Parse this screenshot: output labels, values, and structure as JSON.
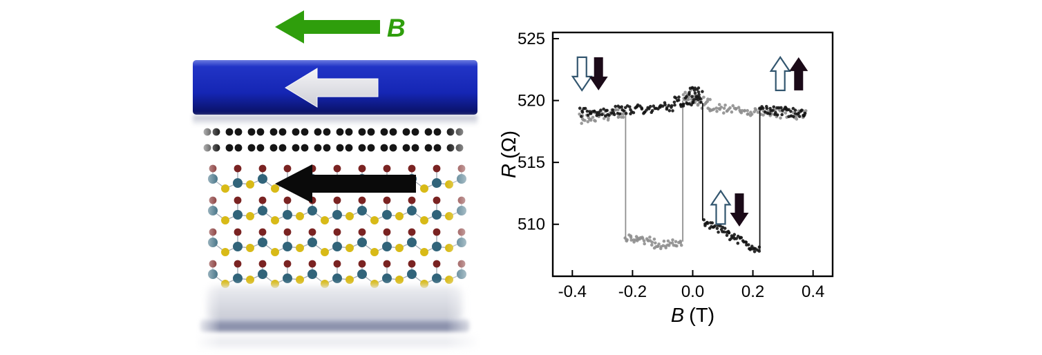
{
  "figure": {
    "schematic": {
      "field_label": "B",
      "colors": {
        "field_arrow": "#2f9e0c",
        "field_label": "#2f9e0c",
        "electrode_top": "#2134c6",
        "electrode_bottom": "#091060",
        "electrode_arrow_light": "#f4f4f6",
        "electrode_arrow_dark": "#cdced6",
        "graphene_atom": "#151515",
        "atom_teal": "#31647a",
        "atom_yellow": "#d8ba17",
        "atom_red": "#7a2322",
        "bond": "#a3abb5",
        "magnetization_arrow": "#0a0a0a",
        "substrate_light": "#c6c9d4",
        "substrate_dark": "#868ca8"
      }
    },
    "chart_data": {
      "type": "scatter",
      "title": "",
      "xlabel_var": "B",
      "xlabel_unit": "(T)",
      "ylabel_var": "R",
      "ylabel_unit": "(Ω)",
      "xlim": [
        -0.465,
        0.465
      ],
      "ylim": [
        505.8,
        525.5
      ],
      "grid": false,
      "legend": "none",
      "xticks": [
        {
          "v": -0.4,
          "label": "-0.4"
        },
        {
          "v": -0.2,
          "label": "-0.2"
        },
        {
          "v": 0.0,
          "label": "0.0"
        },
        {
          "v": 0.2,
          "label": "0.2"
        },
        {
          "v": 0.4,
          "label": "0.4"
        }
      ],
      "yticks": [
        {
          "v": 510,
          "label": "510"
        },
        {
          "v": 515,
          "label": "515"
        },
        {
          "v": 520,
          "label": "520"
        },
        {
          "v": 525,
          "label": "525"
        }
      ],
      "annotation_colors": {
        "open_stroke": "#33566f",
        "filled": "#1b0a18"
      },
      "series": [
        {
          "name": "gray-trace",
          "color": "#8f8f8f",
          "segments": [
            {
              "x1": 0.376,
              "y1": 518.8,
              "x2": 0.06,
              "y2": 519.4,
              "n": 78,
              "noise": 0.38
            },
            {
              "x1": 0.06,
              "y1": 519.6,
              "x2": -0.031,
              "y2": 520.2,
              "n": 30,
              "noise": 0.5
            },
            {
              "x1": -0.03,
              "y1": 520.5,
              "x2": 0.005,
              "y2": 520.4,
              "n": 10,
              "noise": 0.4
            },
            {
              "x1": -0.035,
              "y1": 508.5,
              "x2": -0.13,
              "y2": 508.3,
              "n": 26,
              "noise": 0.32
            },
            {
              "x1": -0.13,
              "y1": 508.6,
              "x2": -0.222,
              "y2": 508.9,
              "n": 28,
              "noise": 0.32
            },
            {
              "x1": -0.225,
              "y1": 519.0,
              "x2": -0.376,
              "y2": 518.5,
              "n": 42,
              "noise": 0.4
            }
          ],
          "jumps": [
            {
              "x": -0.033,
              "y1": 520.0,
              "y2": 508.6
            },
            {
              "x": -0.223,
              "y1": 508.6,
              "y2": 519.0
            }
          ]
        },
        {
          "name": "black-trace",
          "color": "#141414",
          "segments": [
            {
              "x1": -0.376,
              "y1": 519.0,
              "x2": -0.06,
              "y2": 519.5,
              "n": 80,
              "noise": 0.38
            },
            {
              "x1": -0.06,
              "y1": 519.8,
              "x2": 0.031,
              "y2": 520.3,
              "n": 32,
              "noise": 0.5
            },
            {
              "x1": -0.01,
              "y1": 520.9,
              "x2": 0.025,
              "y2": 520.6,
              "n": 10,
              "noise": 0.4
            },
            {
              "x1": 0.035,
              "y1": 510.2,
              "x2": 0.12,
              "y2": 509.3,
              "n": 26,
              "noise": 0.32
            },
            {
              "x1": 0.12,
              "y1": 509.1,
              "x2": 0.222,
              "y2": 507.9,
              "n": 30,
              "noise": 0.32
            },
            {
              "x1": 0.225,
              "y1": 519.2,
              "x2": 0.376,
              "y2": 519.0,
              "n": 42,
              "noise": 0.38
            }
          ],
          "jumps": [
            {
              "x": 0.033,
              "y1": 519.8,
              "y2": 510.3
            },
            {
              "x": 0.223,
              "y1": 507.9,
              "y2": 519.2
            }
          ]
        }
      ],
      "annotations": [
        {
          "x": -0.368,
          "y_top": 523.5,
          "dir": "down",
          "style": "open"
        },
        {
          "x": -0.313,
          "y_top": 523.5,
          "dir": "down",
          "style": "filled"
        },
        {
          "x": 0.291,
          "y_top": 523.5,
          "dir": "up",
          "style": "open"
        },
        {
          "x": 0.352,
          "y_top": 523.5,
          "dir": "up",
          "style": "filled"
        },
        {
          "x": 0.093,
          "y_top": 512.7,
          "dir": "up",
          "style": "open"
        },
        {
          "x": 0.155,
          "y_top": 512.5,
          "dir": "down",
          "style": "filled"
        }
      ]
    }
  }
}
